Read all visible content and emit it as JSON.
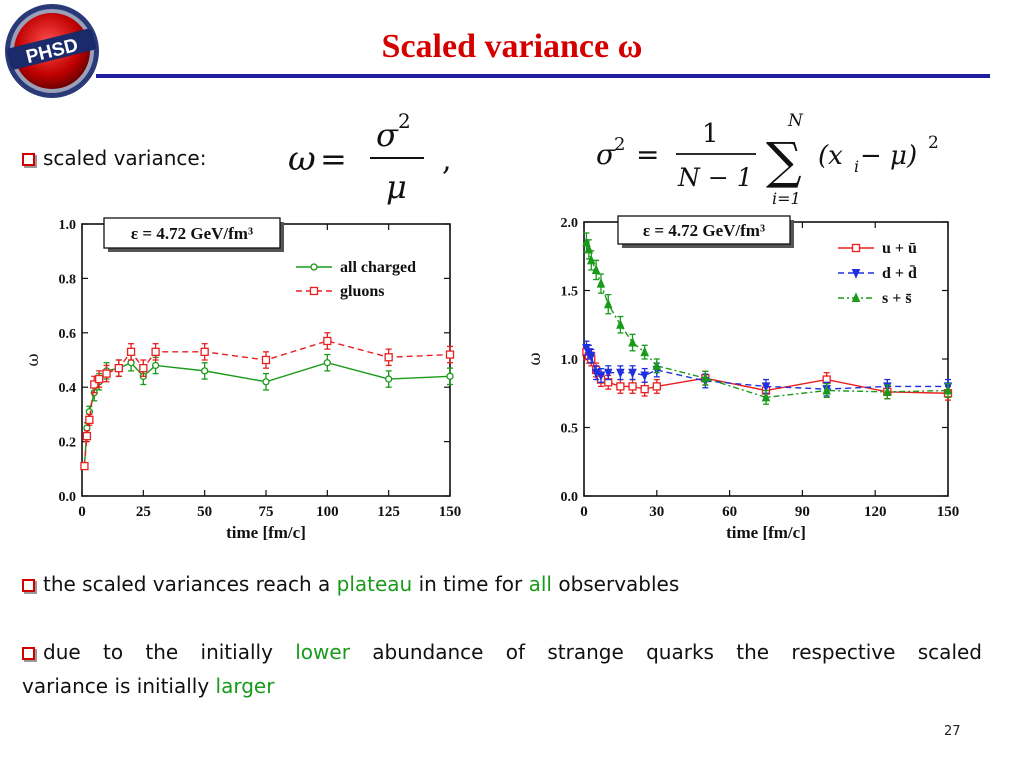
{
  "title": "Scaled variance ω",
  "bullets": {
    "first_label": "scaled variance:",
    "second": [
      "the scaled variances reach a ",
      "plateau",
      " in time for ",
      "all",
      " observables"
    ],
    "third_line1": [
      "due to the initially ",
      "lower",
      " abundance of strange quarks the respective scaled"
    ],
    "third_line2": [
      "variance is initially ",
      "larger"
    ]
  },
  "formulas": {
    "omega": {
      "lhs": "ω",
      "num": "σ",
      "num_sup": "2",
      "den": "μ"
    },
    "sigma": {
      "lhs": "σ",
      "lhs_sup": "2",
      "num": "1",
      "den": "N − 1",
      "sum_top": "N",
      "sum_bot": "i=1",
      "term": "(x",
      "term_sub": "i",
      "term_rest": " − μ)",
      "term_sup": "2"
    }
  },
  "logo": {
    "text": "PHSD"
  },
  "page_number": "27",
  "chart_data": [
    {
      "type": "line",
      "annotation": "ε = 4.72 GeV/fm³",
      "xlabel": "time [fm/c]",
      "ylabel": "ω",
      "xlim": [
        0,
        150
      ],
      "ylim": [
        0,
        1.0
      ],
      "xticks": [
        0,
        25,
        50,
        75,
        100,
        125,
        150
      ],
      "yticks": [
        "0.0",
        "0.2",
        "0.4",
        "0.6",
        "0.8",
        "1.0"
      ],
      "legend_position": "top-right",
      "series": [
        {
          "name": "all charged",
          "color": "#1a9a1a",
          "dash": "",
          "marker": "circle",
          "x": [
            1,
            2,
            3,
            5,
            7,
            10,
            15,
            20,
            25,
            30,
            50,
            75,
            100,
            125,
            150
          ],
          "y": [
            0.11,
            0.25,
            0.31,
            0.38,
            0.42,
            0.46,
            0.47,
            0.49,
            0.44,
            0.48,
            0.46,
            0.42,
            0.49,
            0.43,
            0.44
          ],
          "err": [
            0.01,
            0.02,
            0.02,
            0.03,
            0.03,
            0.03,
            0.03,
            0.03,
            0.03,
            0.03,
            0.03,
            0.03,
            0.03,
            0.03,
            0.03
          ]
        },
        {
          "name": "gluons",
          "color": "#e82020",
          "dash": "6,4",
          "marker": "square",
          "x": [
            1,
            2,
            3,
            5,
            7,
            10,
            15,
            20,
            25,
            30,
            50,
            75,
            100,
            125,
            150
          ],
          "y": [
            0.11,
            0.22,
            0.28,
            0.41,
            0.43,
            0.45,
            0.47,
            0.53,
            0.47,
            0.53,
            0.53,
            0.5,
            0.57,
            0.51,
            0.52
          ],
          "err": [
            0.01,
            0.02,
            0.02,
            0.03,
            0.03,
            0.03,
            0.03,
            0.03,
            0.03,
            0.03,
            0.03,
            0.03,
            0.03,
            0.03,
            0.03
          ]
        }
      ]
    },
    {
      "type": "line",
      "annotation": "ε = 4.72 GeV/fm³",
      "xlabel": "time [fm/c]",
      "ylabel": "ω",
      "xlim": [
        0,
        150
      ],
      "ylim": [
        0,
        2.0
      ],
      "xticks": [
        0,
        30,
        60,
        90,
        120,
        150
      ],
      "yticks": [
        "0.0",
        "0.5",
        "1.0",
        "1.5",
        "2.0"
      ],
      "legend_position": "top-right",
      "series": [
        {
          "name": "u + ū",
          "color": "#e82020",
          "dash": "",
          "marker": "square",
          "x": [
            1,
            2,
            3,
            5,
            7,
            10,
            15,
            20,
            25,
            30,
            50,
            75,
            100,
            125,
            150
          ],
          "y": [
            1.05,
            1.02,
            1.0,
            0.92,
            0.85,
            0.83,
            0.8,
            0.8,
            0.78,
            0.8,
            0.86,
            0.77,
            0.85,
            0.76,
            0.75
          ],
          "err": [
            0.05,
            0.05,
            0.05,
            0.05,
            0.05,
            0.05,
            0.05,
            0.05,
            0.05,
            0.05,
            0.05,
            0.05,
            0.05,
            0.05,
            0.05
          ]
        },
        {
          "name": "d + d̄",
          "color": "#1f2fe0",
          "dash": "6,4",
          "marker": "tri-down",
          "x": [
            1,
            2,
            3,
            5,
            7,
            10,
            15,
            20,
            25,
            30,
            50,
            75,
            100,
            125,
            150
          ],
          "y": [
            1.08,
            1.05,
            1.02,
            0.9,
            0.88,
            0.9,
            0.9,
            0.9,
            0.88,
            0.92,
            0.84,
            0.8,
            0.78,
            0.8,
            0.8
          ],
          "err": [
            0.05,
            0.05,
            0.05,
            0.05,
            0.05,
            0.05,
            0.05,
            0.05,
            0.05,
            0.05,
            0.05,
            0.05,
            0.05,
            0.05,
            0.05
          ]
        },
        {
          "name": "s + s̄",
          "color": "#1a9a1a",
          "dash": "6,3,2,3",
          "marker": "tri-up",
          "x": [
            1,
            2,
            3,
            5,
            7,
            10,
            15,
            20,
            25,
            30,
            50,
            75,
            100,
            125,
            150
          ],
          "y": [
            1.85,
            1.8,
            1.72,
            1.65,
            1.55,
            1.4,
            1.25,
            1.12,
            1.05,
            0.95,
            0.86,
            0.72,
            0.77,
            0.76,
            0.77
          ],
          "err": [
            0.07,
            0.07,
            0.07,
            0.07,
            0.07,
            0.07,
            0.06,
            0.06,
            0.05,
            0.05,
            0.05,
            0.05,
            0.05,
            0.05,
            0.05
          ]
        }
      ]
    }
  ]
}
